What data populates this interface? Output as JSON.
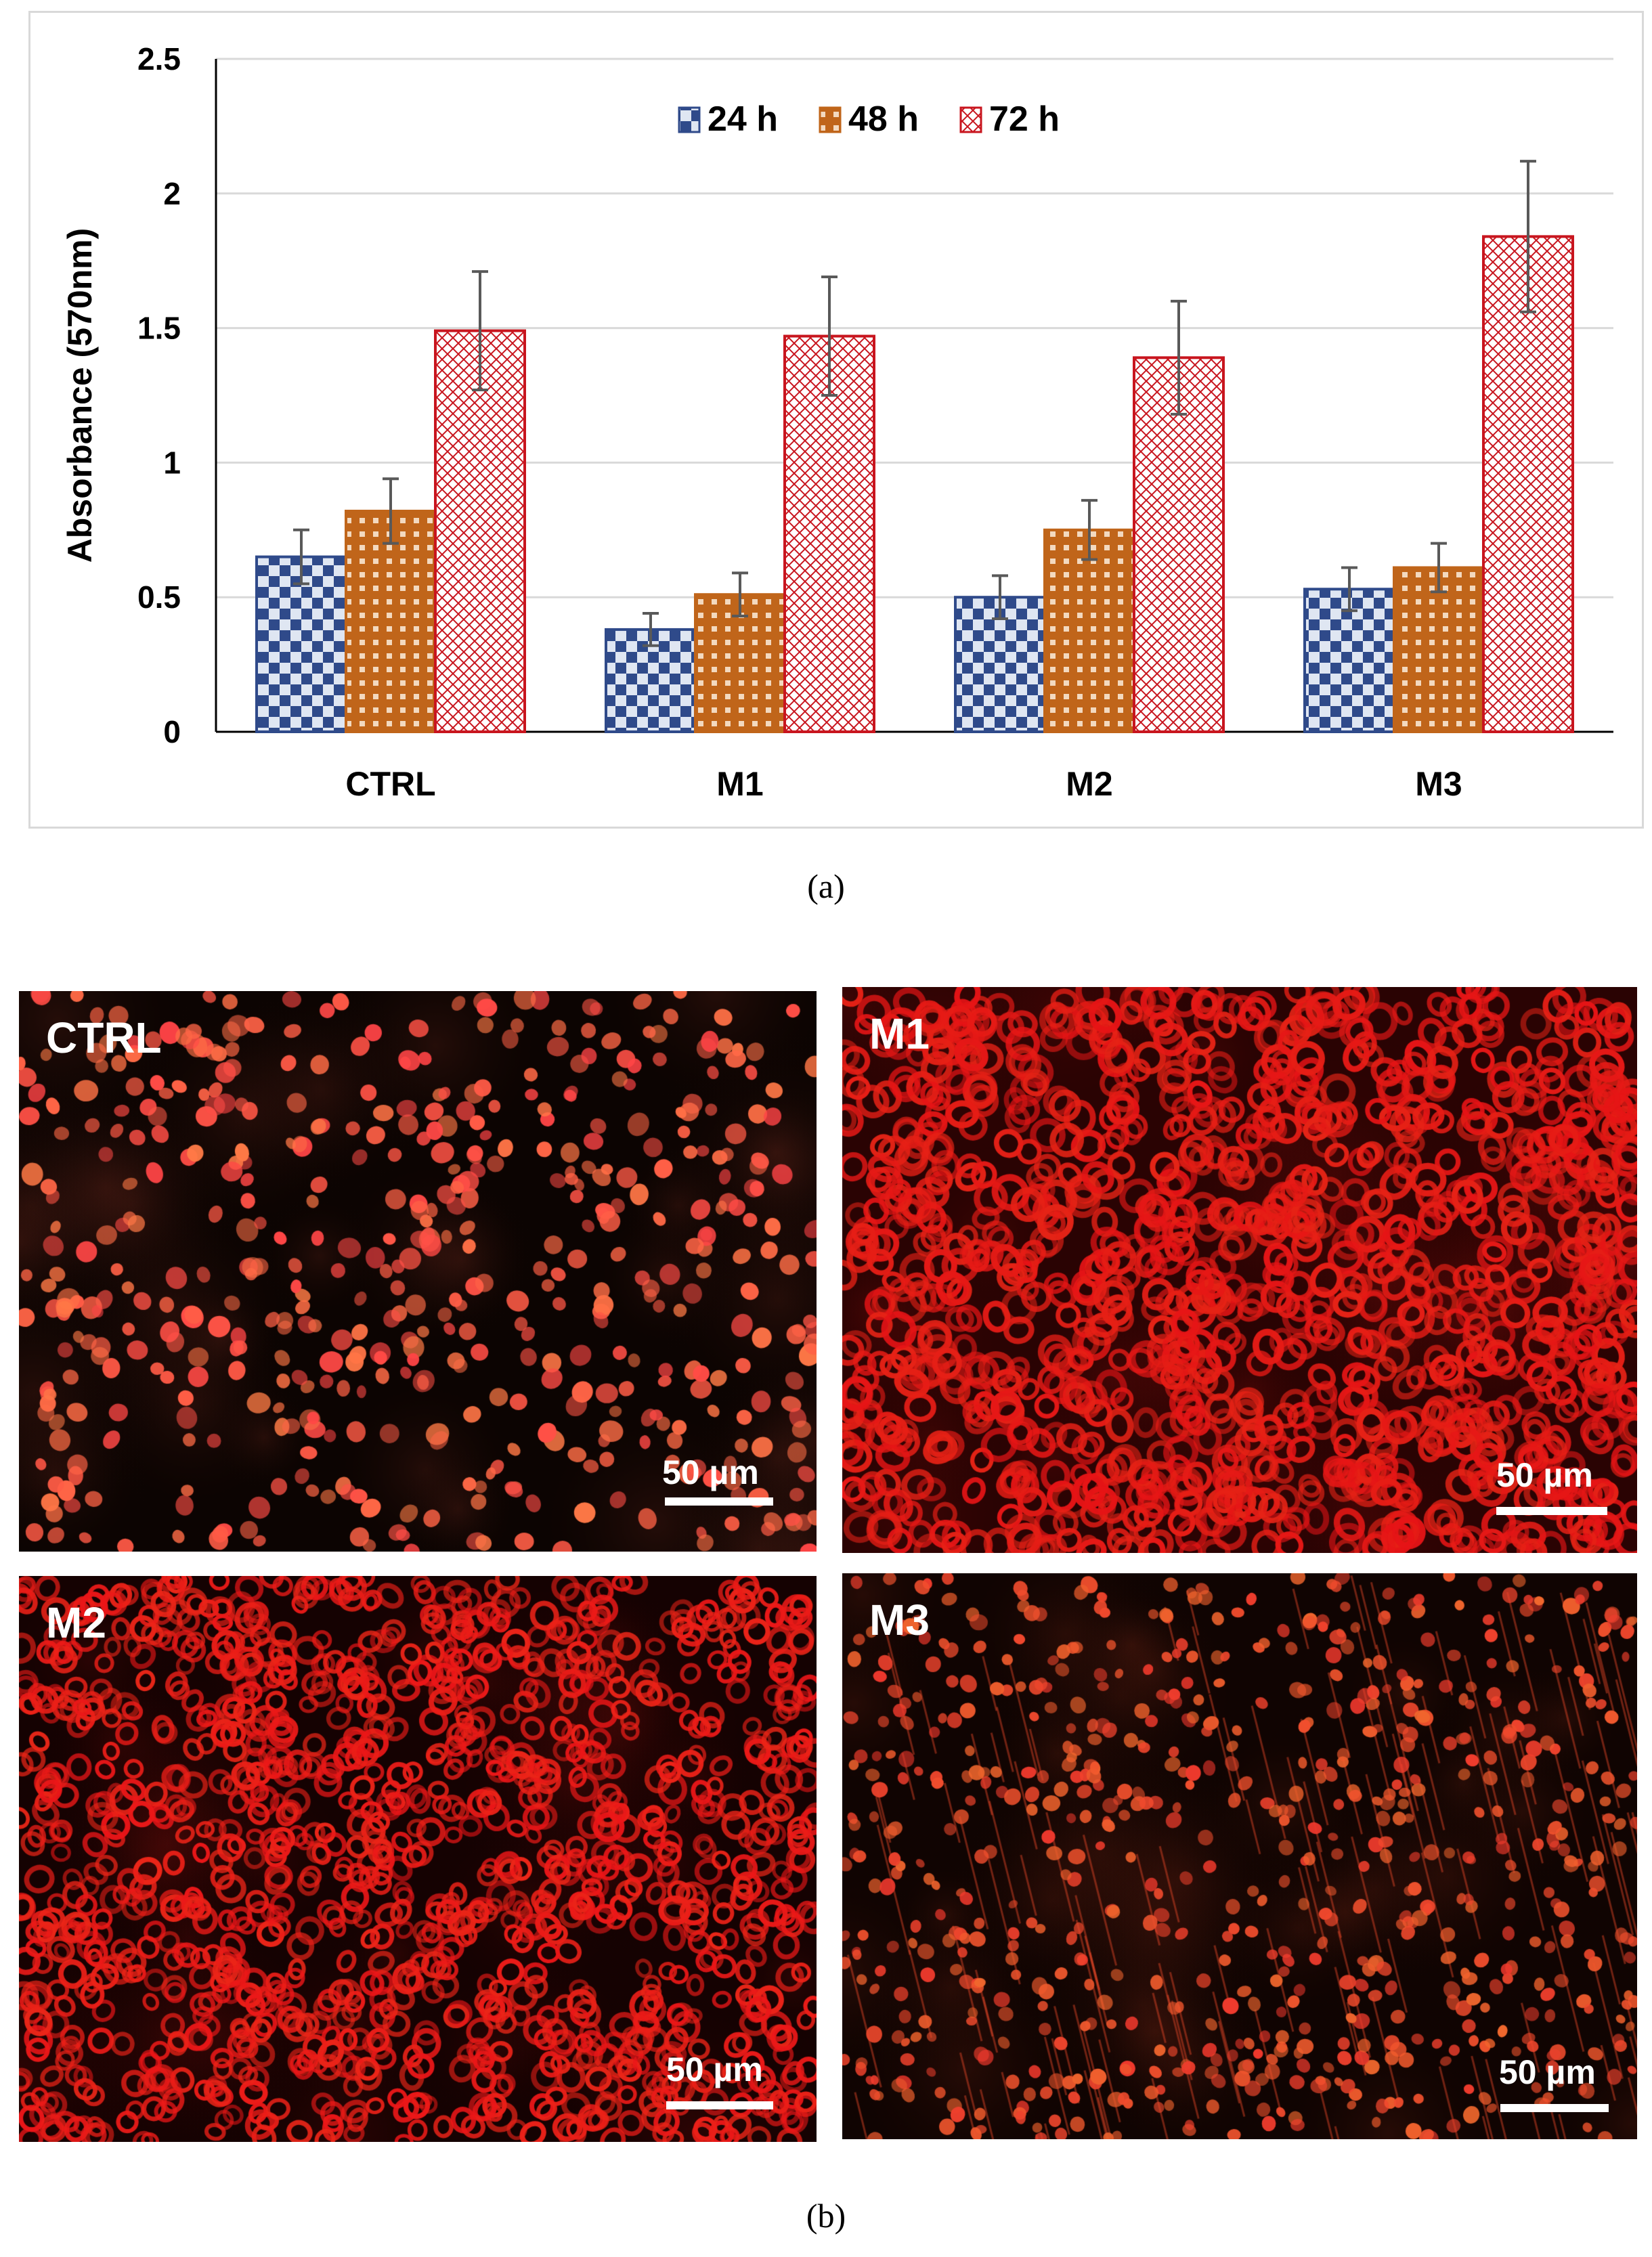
{
  "chart_data": {
    "type": "bar",
    "title": "",
    "xlabel": "",
    "ylabel": "Absorbance (570nm)",
    "ylim": [
      0,
      2.5
    ],
    "yticks": [
      "0",
      "0.5",
      "1",
      "1.5",
      "2",
      "2.5"
    ],
    "ytick_values": [
      0,
      0.5,
      1,
      1.5,
      2,
      2.5
    ],
    "categories": [
      "CTRL",
      "M1",
      "M2",
      "M3"
    ],
    "legend_position": "top-center",
    "grid": true,
    "series": [
      {
        "name": "24 h",
        "values": [
          0.65,
          0.38,
          0.5,
          0.53
        ],
        "errors": [
          0.1,
          0.06,
          0.08,
          0.08
        ],
        "color": "#2f4a8a"
      },
      {
        "name": "48 h",
        "values": [
          0.82,
          0.51,
          0.75,
          0.61
        ],
        "errors": [
          0.12,
          0.08,
          0.11,
          0.09
        ],
        "color": "#c0651a"
      },
      {
        "name": "72 h",
        "values": [
          1.49,
          1.47,
          1.39,
          1.84
        ],
        "errors": [
          0.22,
          0.22,
          0.21,
          0.28
        ],
        "color": "#c8151e"
      }
    ]
  },
  "captions": {
    "a": "(a)",
    "b": "(b)"
  },
  "micrographs": [
    {
      "label": "CTRL",
      "scale": "50 µm"
    },
    {
      "label": "M1",
      "scale": "50 µm"
    },
    {
      "label": "M2",
      "scale": "50 µm"
    },
    {
      "label": "M3",
      "scale": "50 µm"
    }
  ]
}
